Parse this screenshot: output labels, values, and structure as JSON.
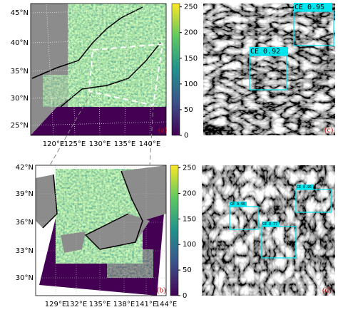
{
  "panels": [
    {
      "label": "(a)",
      "lat_labels": [
        "45°N",
        "40°N",
        "35°N",
        "30°N",
        "25°N"
      ],
      "lon_labels": [
        "120°E",
        "125°E",
        "130°E",
        "135°E",
        "140°E"
      ],
      "colorbar_ticks": [
        0,
        50,
        100,
        150,
        200,
        250
      ]
    },
    {
      "label": "(b)",
      "lat_labels": [
        "42°N",
        "39°N",
        "36°N",
        "33°N",
        "30°N"
      ],
      "lon_labels": [
        "129°E",
        "132°E",
        "135°E",
        "138°E",
        "141°E",
        "144°E"
      ],
      "colorbar_ticks": [
        0,
        50,
        100,
        150,
        200,
        250
      ]
    },
    {
      "label": "(c)",
      "detections": [
        "CE 0.95",
        "CE 0.92"
      ]
    },
    {
      "label": "(d)",
      "detections": [
        "CE 0.95",
        "CE 0.96",
        "CE 0.77"
      ]
    }
  ]
}
